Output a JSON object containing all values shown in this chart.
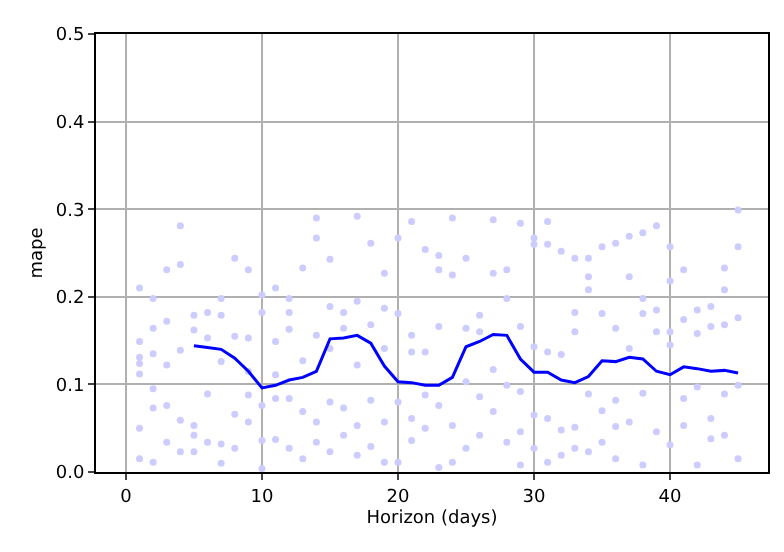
{
  "chart_data": {
    "type": "line",
    "xlabel": "Horizon (days)",
    "ylabel": "mape",
    "xlim": [
      -2.2,
      47.2
    ],
    "ylim": [
      0,
      0.5
    ],
    "xticks": [
      0,
      10,
      20,
      30,
      40
    ],
    "yticks": [
      {
        "value": 0,
        "label": "0.0"
      },
      0.1,
      0.2,
      0.3,
      0.4,
      0.5
    ],
    "grid": true,
    "series": [
      {
        "type": "scatter",
        "marker": "circle",
        "color": "#ccccff",
        "x": [
          1,
          1,
          1,
          1,
          1,
          1,
          1,
          2,
          2,
          2,
          2,
          2,
          2,
          3,
          3,
          3,
          3,
          3,
          4,
          4,
          4,
          4,
          4,
          5,
          5,
          5,
          5,
          5,
          6,
          6,
          6,
          6,
          7,
          7,
          7,
          7,
          7,
          8,
          8,
          8,
          8,
          9,
          9,
          9,
          9,
          9,
          10,
          10,
          10,
          10,
          10,
          11,
          11,
          11,
          11,
          11,
          12,
          12,
          12,
          12,
          12,
          13,
          13,
          13,
          13,
          14,
          14,
          14,
          14,
          14,
          15,
          15,
          15,
          15,
          15,
          16,
          16,
          16,
          16,
          17,
          17,
          17,
          17,
          17,
          18,
          18,
          18,
          18,
          19,
          19,
          19,
          19,
          19,
          20,
          20,
          20,
          20,
          21,
          21,
          21,
          21,
          21,
          22,
          22,
          22,
          22,
          23,
          23,
          23,
          23,
          23,
          24,
          24,
          24,
          24,
          25,
          25,
          25,
          25,
          26,
          26,
          26,
          26,
          27,
          27,
          27,
          27,
          28,
          28,
          28,
          28,
          29,
          29,
          29,
          29,
          29,
          30,
          30,
          30,
          30,
          30,
          31,
          31,
          31,
          31,
          31,
          32,
          32,
          32,
          32,
          33,
          33,
          33,
          33,
          33,
          34,
          34,
          34,
          34,
          34,
          35,
          35,
          35,
          35,
          36,
          36,
          36,
          36,
          36,
          37,
          37,
          37,
          37,
          38,
          38,
          38,
          38,
          38,
          39,
          39,
          39,
          39,
          40,
          40,
          40,
          40,
          40,
          41,
          41,
          41,
          41,
          42,
          42,
          42,
          42,
          43,
          43,
          43,
          43,
          44,
          44,
          44,
          44,
          44,
          45,
          45,
          45,
          45,
          45
        ],
        "values": [
          0.21,
          0.149,
          0.131,
          0.124,
          0.112,
          0.05,
          0.015,
          0.198,
          0.164,
          0.135,
          0.095,
          0.073,
          0.011,
          0.231,
          0.172,
          0.122,
          0.076,
          0.034,
          0.281,
          0.237,
          0.139,
          0.059,
          0.023,
          0.179,
          0.162,
          0.053,
          0.042,
          0.023,
          0.182,
          0.153,
          0.089,
          0.034,
          0.198,
          0.179,
          0.126,
          0.032,
          0.01,
          0.244,
          0.155,
          0.066,
          0.027,
          0.231,
          0.153,
          0.115,
          0.088,
          0.057,
          0.202,
          0.182,
          0.076,
          0.036,
          0.004,
          0.21,
          0.149,
          0.111,
          0.084,
          0.037,
          0.198,
          0.182,
          0.163,
          0.084,
          0.027,
          0.233,
          0.127,
          0.069,
          0.015,
          0.29,
          0.267,
          0.156,
          0.057,
          0.034,
          0.243,
          0.189,
          0.141,
          0.08,
          0.023,
          0.182,
          0.164,
          0.073,
          0.042,
          0.292,
          0.195,
          0.122,
          0.053,
          0.019,
          0.261,
          0.168,
          0.082,
          0.029,
          0.227,
          0.187,
          0.141,
          0.057,
          0.011,
          0.267,
          0.181,
          0.08,
          0.011,
          0.286,
          0.156,
          0.137,
          0.061,
          0.036,
          0.254,
          0.137,
          0.088,
          0.05,
          0.247,
          0.231,
          0.166,
          0.076,
          0.005,
          0.29,
          0.225,
          0.053,
          0.011,
          0.244,
          0.164,
          0.103,
          0.027,
          0.179,
          0.16,
          0.086,
          0.042,
          0.288,
          0.227,
          0.117,
          0.069,
          0.231,
          0.198,
          0.099,
          0.034,
          0.284,
          0.166,
          0.092,
          0.046,
          0.008,
          0.267,
          0.26,
          0.143,
          0.065,
          0.027,
          0.286,
          0.26,
          0.137,
          0.061,
          0.011,
          0.252,
          0.134,
          0.048,
          0.019,
          0.244,
          0.182,
          0.16,
          0.051,
          0.027,
          0.244,
          0.223,
          0.208,
          0.089,
          0.023,
          0.257,
          0.181,
          0.07,
          0.034,
          0.261,
          0.164,
          0.082,
          0.052,
          0.015,
          0.269,
          0.223,
          0.141,
          0.057,
          0.273,
          0.198,
          0.181,
          0.09,
          0.008,
          0.281,
          0.185,
          0.16,
          0.046,
          0.257,
          0.218,
          0.16,
          0.145,
          0.031,
          0.231,
          0.174,
          0.084,
          0.053,
          0.185,
          0.158,
          0.097,
          0.008,
          0.189,
          0.166,
          0.061,
          0.038,
          0.233,
          0.208,
          0.168,
          0.089,
          0.042,
          0.299,
          0.257,
          0.176,
          0.099,
          0.015
        ]
      },
      {
        "marker": "none",
        "line_style": "solid",
        "color": "#0000ff",
        "x": [
          5,
          6,
          7,
          8,
          9,
          10,
          11,
          12,
          13,
          14,
          15,
          16,
          17,
          18,
          19,
          20,
          21,
          22,
          23,
          24,
          25,
          26,
          27,
          28,
          29,
          30,
          31,
          32,
          33,
          34,
          35,
          36,
          37,
          38,
          39,
          40,
          41,
          42,
          43,
          44,
          45
        ],
        "values": [
          0.144,
          0.142,
          0.14,
          0.13,
          0.115,
          0.096,
          0.099,
          0.105,
          0.108,
          0.115,
          0.152,
          0.153,
          0.156,
          0.147,
          0.121,
          0.103,
          0.102,
          0.099,
          0.099,
          0.108,
          0.143,
          0.149,
          0.157,
          0.156,
          0.129,
          0.114,
          0.114,
          0.105,
          0.102,
          0.109,
          0.127,
          0.126,
          0.131,
          0.129,
          0.115,
          0.111,
          0.12,
          0.118,
          0.115,
          0.116,
          0.113
        ]
      }
    ]
  }
}
